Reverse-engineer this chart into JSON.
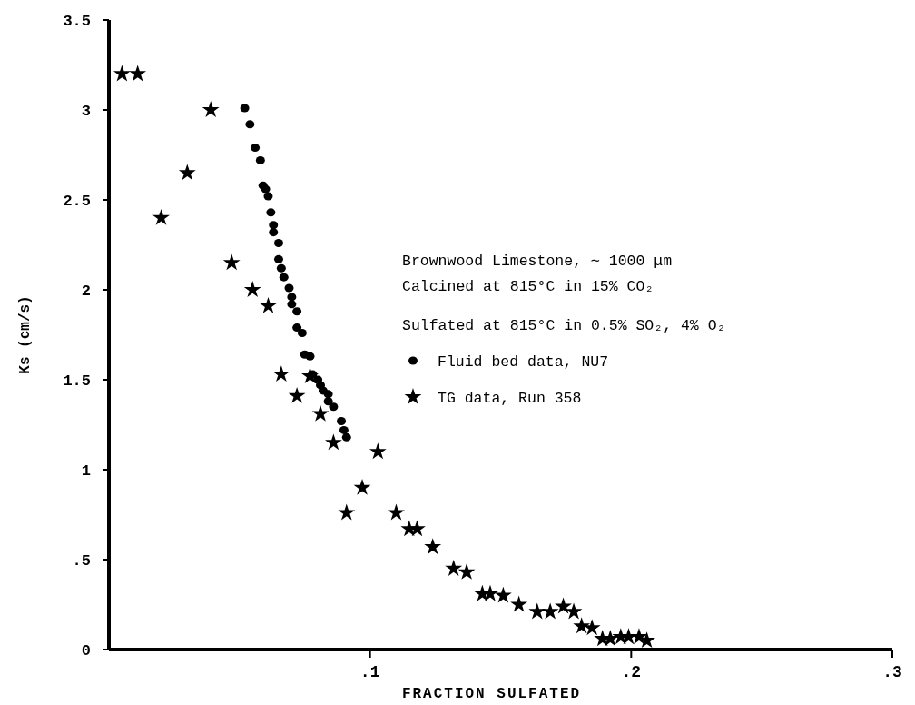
{
  "chart_data": {
    "type": "scatter",
    "xlabel": "FRACTION SULFATED",
    "ylabel": "Ks (cm/s)",
    "xlim": [
      0,
      0.3
    ],
    "xticks": [
      {
        "value": 0.1,
        "label": ".1"
      },
      {
        "value": 0.2,
        "label": ".2"
      },
      {
        "value": 0.3,
        "label": ".3"
      }
    ],
    "ylim": [
      0,
      3.5
    ],
    "yticks": [
      0,
      {
        "value": 0.5,
        "label": ".5"
      },
      1,
      1.5,
      2,
      2.5,
      3,
      3.5
    ],
    "grid": false,
    "legend": "right",
    "annotations": [
      "Brownwood Limestone, ∼ 1000 μm",
      "Calcined at 815°C in 15% CO₂",
      "Sulfated at 815°C in 0.5% SO₂, 4% O₂"
    ],
    "series": [
      {
        "name": "Fluid bed data, NU7",
        "color": "#000000",
        "marker": "circle",
        "x": [
          0.052,
          0.054,
          0.056,
          0.058,
          0.059,
          0.06,
          0.061,
          0.062,
          0.063,
          0.063,
          0.065,
          0.065,
          0.066,
          0.067,
          0.069,
          0.07,
          0.07,
          0.072,
          0.072,
          0.074,
          0.075,
          0.077,
          0.078,
          0.08,
          0.081,
          0.082,
          0.084,
          0.084,
          0.086,
          0.089,
          0.09,
          0.091
        ],
        "values": [
          3.01,
          2.92,
          2.79,
          2.72,
          2.58,
          2.56,
          2.52,
          2.43,
          2.36,
          2.32,
          2.26,
          2.17,
          2.12,
          2.07,
          2.01,
          1.96,
          1.92,
          1.88,
          1.79,
          1.76,
          1.64,
          1.63,
          1.53,
          1.5,
          1.47,
          1.44,
          1.42,
          1.38,
          1.35,
          1.27,
          1.22,
          1.18
        ]
      },
      {
        "name": "TG data, Run 358",
        "color": "#000000",
        "marker": "star",
        "x": [
          0.005,
          0.011,
          0.02,
          0.03,
          0.039,
          0.047,
          0.055,
          0.061,
          0.066,
          0.072,
          0.077,
          0.081,
          0.086,
          0.091,
          0.097,
          0.103,
          0.11,
          0.115,
          0.118,
          0.124,
          0.132,
          0.137,
          0.143,
          0.146,
          0.151,
          0.157,
          0.164,
          0.169,
          0.174,
          0.178,
          0.181,
          0.185,
          0.189,
          0.192,
          0.196,
          0.199,
          0.203,
          0.206
        ],
        "values": [
          3.2,
          3.2,
          2.4,
          2.65,
          3.0,
          2.15,
          2.0,
          1.91,
          1.53,
          1.41,
          1.52,
          1.31,
          1.15,
          0.76,
          0.9,
          1.1,
          0.76,
          0.67,
          0.67,
          0.57,
          0.45,
          0.43,
          0.31,
          0.31,
          0.3,
          0.25,
          0.21,
          0.21,
          0.24,
          0.21,
          0.13,
          0.12,
          0.06,
          0.06,
          0.07,
          0.07,
          0.07,
          0.05
        ]
      }
    ]
  }
}
